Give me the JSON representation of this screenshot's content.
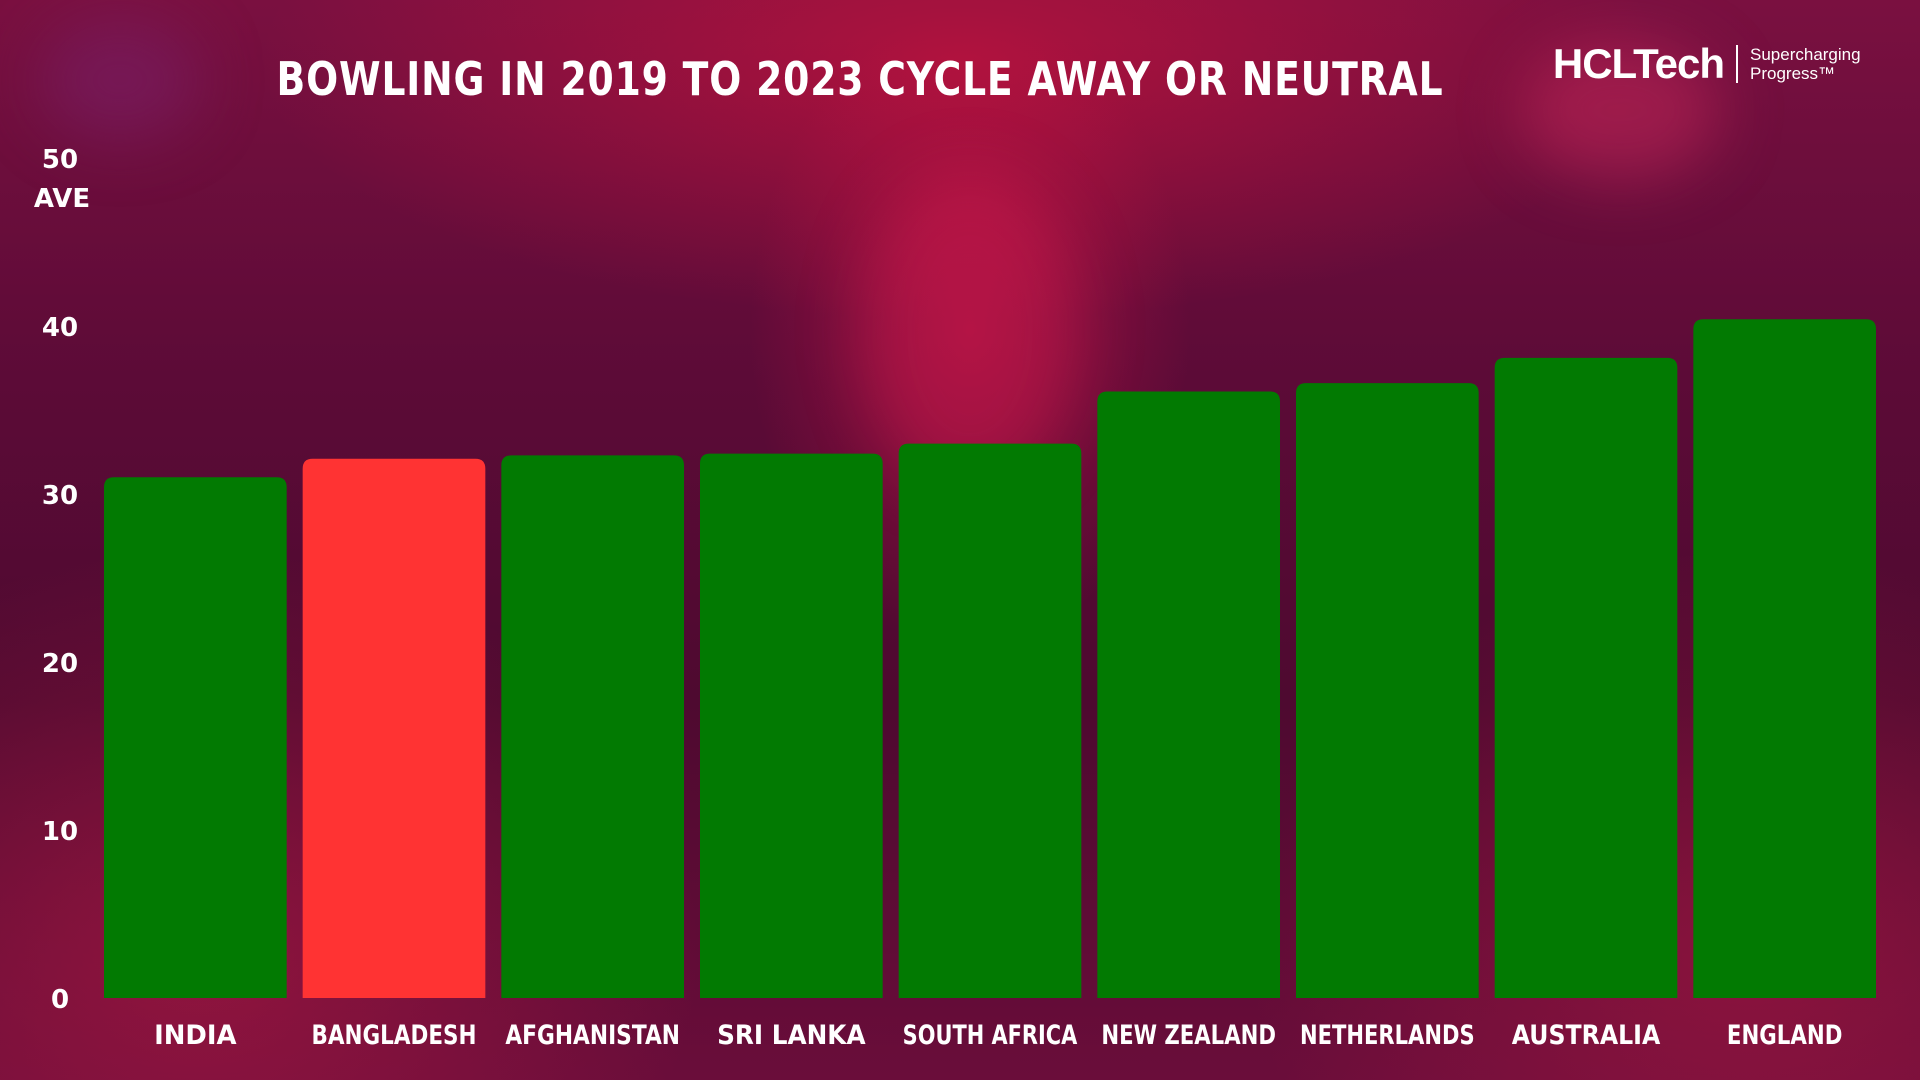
{
  "title": "BOWLING IN 2019 TO 2023 CYCLE AWAY OR NEUTRAL",
  "logo": {
    "wordmark": "HCLTech",
    "tagline": "Supercharging Progress™"
  },
  "colors": {
    "default_bar": "#027a02",
    "highlight_bar": "#ff3333",
    "text": "#ffffff"
  },
  "chart_data": {
    "type": "bar",
    "title": "BOWLING IN 2019 TO 2023 CYCLE AWAY OR NEUTRAL",
    "xlabel": "",
    "ylabel": "AVE",
    "ylim": [
      0,
      50
    ],
    "yticks": [
      0,
      10,
      20,
      30,
      40,
      50
    ],
    "grid": false,
    "categories": [
      "INDIA",
      "BANGLADESH",
      "AFGHANISTAN",
      "SRI LANKA",
      "SOUTH AFRICA",
      "NEW ZEALAND",
      "NETHERLANDS",
      "AUSTRALIA",
      "ENGLAND"
    ],
    "values": [
      31.0,
      32.1,
      32.3,
      32.4,
      33.0,
      36.1,
      36.6,
      38.1,
      40.4
    ],
    "highlight": [
      "BANGLADESH"
    ]
  }
}
